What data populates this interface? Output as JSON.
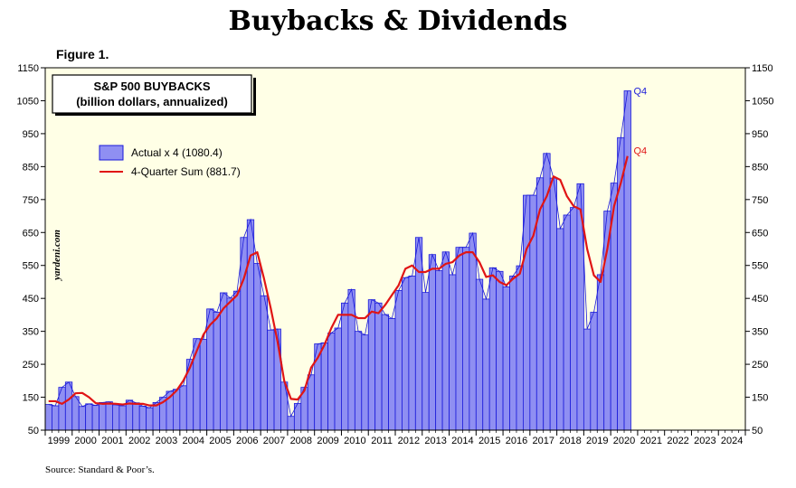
{
  "title": "Buybacks & Dividends",
  "figure_label": "Figure 1.",
  "source": "Source: Standard & Poor’s.",
  "colors": {
    "bar_fill": "#8f8ff2",
    "bar_stroke": "#1a1ad9",
    "line": "#e01515",
    "plot_bg": "#ffffe6"
  },
  "chart_data": {
    "type": "bar",
    "box_title": [
      "S&P 500 BUYBACKS",
      "(billion dollars, annualized)"
    ],
    "watermark": "yardeni.com",
    "ylim": [
      50,
      1150
    ],
    "yticks": [
      50,
      150,
      250,
      350,
      450,
      550,
      650,
      750,
      850,
      950,
      1050,
      1150
    ],
    "year_labels": [
      "1999",
      "2000",
      "2001",
      "2002",
      "2003",
      "2004",
      "2005",
      "2006",
      "2007",
      "2008",
      "2009",
      "2010",
      "2011",
      "2012",
      "2013",
      "2014",
      "2015",
      "2016",
      "2017",
      "2018",
      "2019",
      "2020",
      "2021",
      "2022",
      "2023",
      "2024"
    ],
    "start_year": 1999,
    "series": [
      {
        "name": "Actual x 4 (1080.4)",
        "kind": "bar",
        "end_label": "Q4",
        "values": [
          128,
          124,
          180,
          196,
          152,
          122,
          130,
          125,
          134,
          136,
          127,
          124,
          141,
          133,
          123,
          118,
          134,
          150,
          168,
          174,
          185,
          265,
          328,
          326,
          418,
          408,
          467,
          451,
          472,
          635,
          689,
          556,
          458,
          354,
          357,
          196,
          92,
          131,
          180,
          218,
          312,
          315,
          345,
          360,
          436,
          477,
          350,
          339,
          446,
          436,
          401,
          389,
          474,
          513,
          518,
          635,
          468,
          583,
          534,
          591,
          522,
          605,
          605,
          648,
          508,
          448,
          543,
          532,
          485,
          518,
          549,
          763,
          763,
          816,
          890,
          815,
          662,
          703,
          726,
          798,
          357,
          408,
          522,
          715,
          800,
          938,
          1080
        ]
      },
      {
        "name": "4-Quarter Sum (881.7)",
        "kind": "line",
        "end_label": "Q4",
        "values": [
          138,
          138,
          130,
          143,
          162,
          163,
          150,
          132,
          130,
          131,
          130,
          128,
          131,
          130,
          130,
          125,
          125,
          135,
          150,
          170,
          200,
          240,
          290,
          340,
          370,
          390,
          420,
          440,
          460,
          510,
          580,
          590,
          510,
          420,
          320,
          200,
          145,
          143,
          170,
          240,
          270,
          310,
          360,
          400,
          400,
          400,
          390,
          390,
          410,
          405,
          430,
          460,
          490,
          540,
          550,
          530,
          530,
          540,
          540,
          555,
          560,
          580,
          590,
          590,
          560,
          515,
          520,
          500,
          490,
          510,
          525,
          600,
          640,
          720,
          760,
          820,
          810,
          760,
          730,
          720,
          600,
          520,
          500,
          600,
          730,
          800,
          882
        ]
      }
    ]
  }
}
